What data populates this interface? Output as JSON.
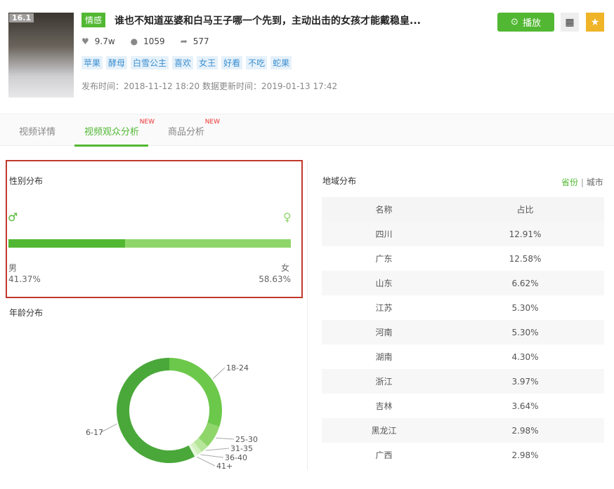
{
  "video": {
    "hot": "16.1",
    "category": "情感",
    "title": "谁也不知道巫婆和白马王子哪一个先到，主动出击的女孩才能戴稳皇...",
    "likes": "9.7w",
    "comments": "1059",
    "shares": "577",
    "tags": [
      "苹果",
      "酵母",
      "白雪公主",
      "喜欢",
      "女王",
      "好看",
      "不吃",
      "蛇果"
    ],
    "time": "发布时间：2018-11-12 18:20 数据更新时间：2019-01-13 17:42",
    "play_label": "播放"
  },
  "tabs": [
    {
      "label": "视频详情"
    },
    {
      "label": "视频观众分析",
      "badge": "NEW"
    },
    {
      "label": "商品分析",
      "badge": "NEW"
    }
  ],
  "gender": {
    "title": "性别分布",
    "male_label": "男",
    "female_label": "女",
    "male_pct": "41.37%",
    "female_pct": "58.63%",
    "male_value": 41.37,
    "colors": {
      "male": "#52b833",
      "female": "#8fd66a"
    }
  },
  "age": {
    "title": "年龄分布"
  },
  "region": {
    "title": "地域分布",
    "toggle_province": "省份",
    "toggle_sep": "|",
    "toggle_city": "城市",
    "headers": [
      "名称",
      "占比"
    ],
    "rows": [
      [
        "四川",
        "12.91%"
      ],
      [
        "广东",
        "12.58%"
      ],
      [
        "山东",
        "6.62%"
      ],
      [
        "江苏",
        "5.30%"
      ],
      [
        "河南",
        "5.30%"
      ],
      [
        "湖南",
        "4.30%"
      ],
      [
        "浙江",
        "3.97%"
      ],
      [
        "吉林",
        "3.64%"
      ],
      [
        "黑龙江",
        "2.98%"
      ],
      [
        "广西",
        "2.98%"
      ]
    ]
  },
  "chart_data": {
    "type": "pie",
    "categories": [
      "18-24",
      "25-30",
      "31-35",
      "36-40",
      "41+",
      "6-17"
    ],
    "values": [
      30,
      7,
      2.5,
      1.5,
      1,
      58
    ],
    "colors": [
      "#6cc84a",
      "#8fd66a",
      "#b6e69a",
      "#d3f0c0",
      "#e6f7dc",
      "#4aa83a"
    ]
  }
}
